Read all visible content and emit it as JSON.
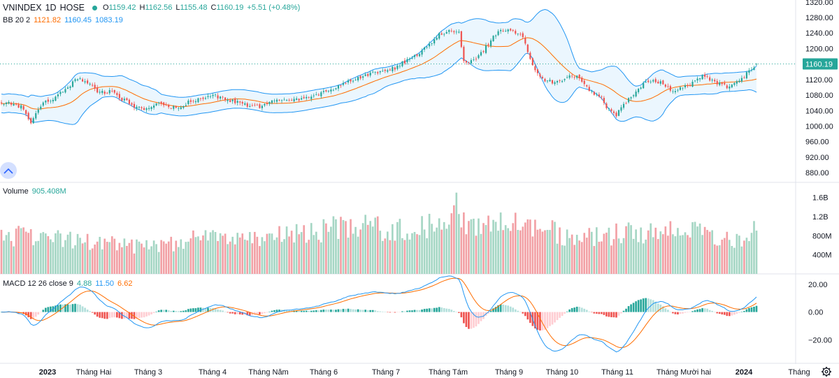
{
  "header": {
    "symbol": "VNINDEX",
    "interval": "1D",
    "exchange": "HOSE",
    "ohlc": {
      "o_key": "O",
      "o": "1159.42",
      "h_key": "H",
      "h": "1162.56",
      "l_key": "L",
      "l": "1155.48",
      "c_key": "C",
      "c": "1160.19",
      "change": "+5.51 (+0.48%)"
    }
  },
  "bb_legend": {
    "label": "BB 20 2",
    "basis": "1121.82",
    "upper": "1160.45",
    "lower": "1083.19"
  },
  "volume_legend": {
    "label": "Volume",
    "value": "905.408M"
  },
  "macd_legend": {
    "label": "MACD 12 26 close 9",
    "hist": "4.88",
    "macd": "11.50",
    "signal": "6.62"
  },
  "colors": {
    "up": "#26a69a",
    "down": "#ef5350",
    "vol_up": "#a5d6c4",
    "vol_down": "#f2a0a5",
    "bb_basis": "#ff6d00",
    "bb_band": "#2196f3",
    "bb_fill": "#e3f2fd",
    "macd_line": "#2196f3",
    "signal_line": "#ff6d00",
    "hist_up_strong": "#26a69a",
    "hist_up_weak": "#b2dfdb",
    "hist_down_strong": "#ef5350",
    "hist_down_weak": "#ffcdd2",
    "last_price_bg": "#26a69a"
  },
  "chart_data": {
    "type": "candlestick",
    "title": "VNINDEX 1D HOSE",
    "x_labels": [
      "2023",
      "Tháng Hai",
      "Tháng 3",
      "Tháng 4",
      "Tháng Năm",
      "Tháng 6",
      "Tháng 7",
      "Tháng Tám",
      "Tháng 9",
      "Tháng 10",
      "Tháng 11",
      "Tháng Mười hai",
      "2024",
      "Tháng"
    ],
    "price_axis": {
      "ticks": [
        "1320.00",
        "1280.00",
        "1240.00",
        "1200.00",
        "1160.00",
        "1120.00",
        "1080.00",
        "1040.00",
        "1000.00",
        "960.00",
        "920.00",
        "880.00"
      ],
      "range": [
        855,
        1325
      ],
      "last_price": "1160.19",
      "last_price_value": 1160.19
    },
    "volume_axis": {
      "ticks": [
        "1.6B",
        "1.2B",
        "800M",
        "400M"
      ],
      "range": [
        0,
        1900000000
      ]
    },
    "macd_axis": {
      "ticks": [
        "20.00",
        "0.00",
        "−20.00"
      ],
      "range": [
        -37,
        27
      ]
    },
    "price_anchors": [
      [
        0,
        1062
      ],
      [
        8,
        1050
      ],
      [
        12,
        1010
      ],
      [
        16,
        1055
      ],
      [
        22,
        1075
      ],
      [
        27,
        1100
      ],
      [
        31,
        1125
      ],
      [
        35,
        1110
      ],
      [
        40,
        1085
      ],
      [
        45,
        1090
      ],
      [
        49,
        1070
      ],
      [
        54,
        1050
      ],
      [
        58,
        1045
      ],
      [
        63,
        1060
      ],
      [
        68,
        1052
      ],
      [
        72,
        1045
      ],
      [
        77,
        1065
      ],
      [
        82,
        1075
      ],
      [
        86,
        1080
      ],
      [
        91,
        1070
      ],
      [
        96,
        1062
      ],
      [
        100,
        1053
      ],
      [
        105,
        1050
      ],
      [
        110,
        1062
      ],
      [
        115,
        1070
      ],
      [
        120,
        1068
      ],
      [
        126,
        1075
      ],
      [
        132,
        1090
      ],
      [
        138,
        1105
      ],
      [
        144,
        1122
      ],
      [
        150,
        1135
      ],
      [
        155,
        1140
      ],
      [
        160,
        1150
      ],
      [
        165,
        1170
      ],
      [
        170,
        1190
      ],
      [
        174,
        1210
      ],
      [
        178,
        1235
      ],
      [
        182,
        1245
      ],
      [
        186,
        1240
      ],
      [
        188,
        1170
      ],
      [
        191,
        1165
      ],
      [
        196,
        1195
      ],
      [
        200,
        1230
      ],
      [
        204,
        1250
      ],
      [
        208,
        1245
      ],
      [
        212,
        1230
      ],
      [
        214,
        1195
      ],
      [
        217,
        1140
      ],
      [
        221,
        1120
      ],
      [
        225,
        1110
      ],
      [
        229,
        1122
      ],
      [
        233,
        1130
      ],
      [
        236,
        1115
      ],
      [
        240,
        1088
      ],
      [
        244,
        1075
      ],
      [
        246,
        1050
      ],
      [
        250,
        1030
      ],
      [
        253,
        1055
      ],
      [
        257,
        1080
      ],
      [
        261,
        1110
      ],
      [
        265,
        1115
      ],
      [
        269,
        1110
      ],
      [
        273,
        1090
      ],
      [
        277,
        1100
      ],
      [
        281,
        1110
      ],
      [
        285,
        1128
      ],
      [
        289,
        1120
      ],
      [
        292,
        1108
      ],
      [
        296,
        1098
      ],
      [
        300,
        1115
      ],
      [
        303,
        1135
      ],
      [
        306,
        1150
      ],
      [
        307,
        1160
      ]
    ],
    "volume_series": {
      "name": "Volume",
      "notes": "daily volume in shares, 308 sessions",
      "anchors": [
        [
          0,
          780
        ],
        [
          20,
          700
        ],
        [
          40,
          650
        ],
        [
          60,
          520
        ],
        [
          80,
          690
        ],
        [
          100,
          650
        ],
        [
          120,
          800
        ],
        [
          140,
          950
        ],
        [
          160,
          900
        ],
        [
          175,
          1000
        ],
        [
          185,
          1200
        ],
        [
          190,
          900
        ],
        [
          205,
          1050
        ],
        [
          220,
          900
        ],
        [
          235,
          700
        ],
        [
          250,
          800
        ],
        [
          265,
          800
        ],
        [
          280,
          850
        ],
        [
          300,
          700
        ],
        [
          307,
          905
        ]
      ]
    },
    "macd": {
      "macd_last": 11.5,
      "signal_last": 6.62,
      "hist_last": 4.88,
      "fast": 12,
      "slow": 26,
      "signal": 9
    },
    "bollinger": {
      "length": 20,
      "mult": 2,
      "basis_last": 1121.82,
      "upper_last": 1160.45,
      "lower_last": 1083.19
    }
  }
}
